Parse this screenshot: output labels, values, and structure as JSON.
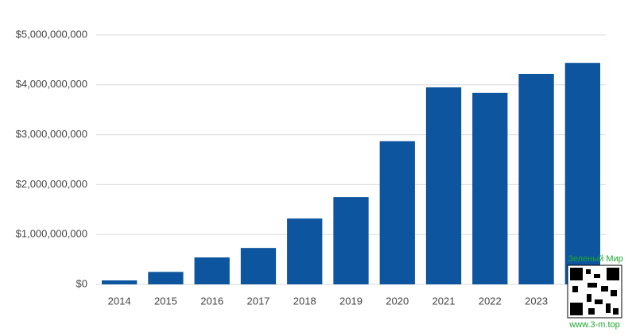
{
  "chart_data": {
    "type": "bar",
    "categories": [
      "2014",
      "2015",
      "2016",
      "2017",
      "2018",
      "2019",
      "2020",
      "2021",
      "2022",
      "2023",
      null
    ],
    "values": [
      80000000,
      250000000,
      540000000,
      730000000,
      1320000000,
      1750000000,
      2870000000,
      3950000000,
      3840000000,
      4220000000,
      4440000000
    ],
    "color": "#0e559f",
    "ylim": [
      0,
      5000000000
    ],
    "yticks": [
      {
        "value": 0,
        "label": "$0"
      },
      {
        "value": 1000000000,
        "label": "$1,000,000,000"
      },
      {
        "value": 2000000000,
        "label": "$2,000,000,000"
      },
      {
        "value": 3000000000,
        "label": "$3,000,000,000"
      },
      {
        "value": 4000000000,
        "label": "$4,000,000,000"
      },
      {
        "value": 5000000000,
        "label": "$5,000,000,000"
      }
    ],
    "grid": true
  },
  "watermark": {
    "title": "Зеленый Мир",
    "url": "www.3-m.top"
  }
}
